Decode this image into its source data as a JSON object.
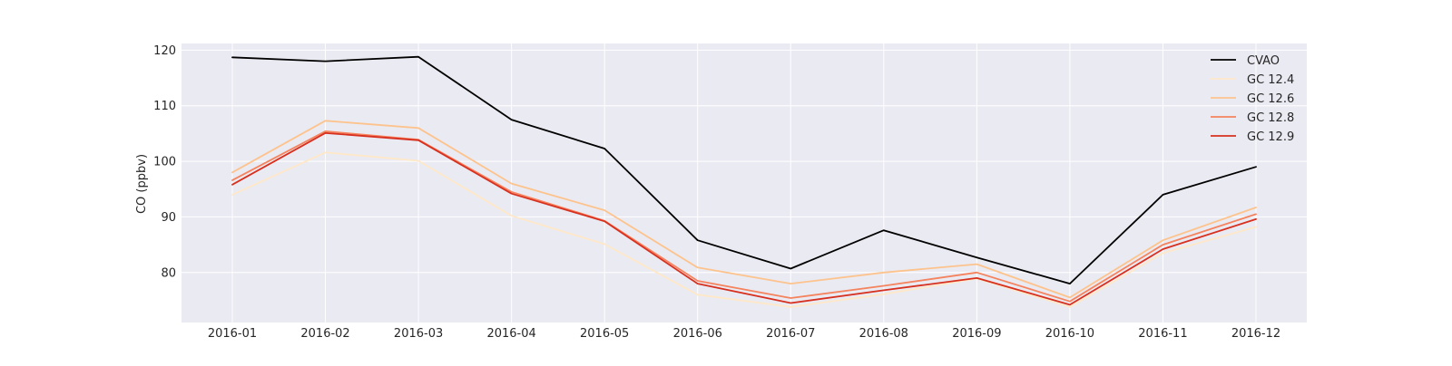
{
  "chart_data": {
    "type": "line",
    "title": "",
    "xlabel": "",
    "ylabel": "CO (ppbv)",
    "categories": [
      "2016-01",
      "2016-02",
      "2016-03",
      "2016-04",
      "2016-05",
      "2016-06",
      "2016-07",
      "2016-08",
      "2016-09",
      "2016-10",
      "2016-11",
      "2016-12"
    ],
    "yticks": [
      80,
      90,
      100,
      110,
      120
    ],
    "ylim": [
      71,
      121.2
    ],
    "grid": true,
    "legend_position": "top-right",
    "series": [
      {
        "name": "CVAO",
        "color": "#000000",
        "values": [
          118.7,
          118.0,
          118.8,
          107.5,
          102.3,
          85.8,
          80.7,
          87.6,
          82.7,
          78.0,
          94.0,
          99.0
        ]
      },
      {
        "name": "GC 12.4",
        "color": "#fee8c8",
        "values": [
          94.0,
          101.6,
          100.1,
          90.2,
          85.1,
          76.0,
          73.8,
          76.1,
          78.9,
          73.8,
          83.5,
          88.2
        ]
      },
      {
        "name": "GC 12.6",
        "color": "#fdc38d",
        "values": [
          98.0,
          107.3,
          106.0,
          96.0,
          91.2,
          80.9,
          78.0,
          80.0,
          81.5,
          75.5,
          85.8,
          91.7
        ]
      },
      {
        "name": "GC 12.8",
        "color": "#f4835e",
        "values": [
          96.6,
          105.4,
          103.9,
          94.5,
          89.3,
          78.5,
          75.4,
          77.6,
          80.0,
          74.8,
          85.0,
          90.5
        ]
      },
      {
        "name": "GC 12.9",
        "color": "#d7301f",
        "values": [
          95.8,
          105.1,
          103.8,
          94.2,
          89.2,
          78.0,
          74.5,
          76.8,
          79.0,
          74.2,
          84.2,
          89.6
        ]
      }
    ]
  }
}
